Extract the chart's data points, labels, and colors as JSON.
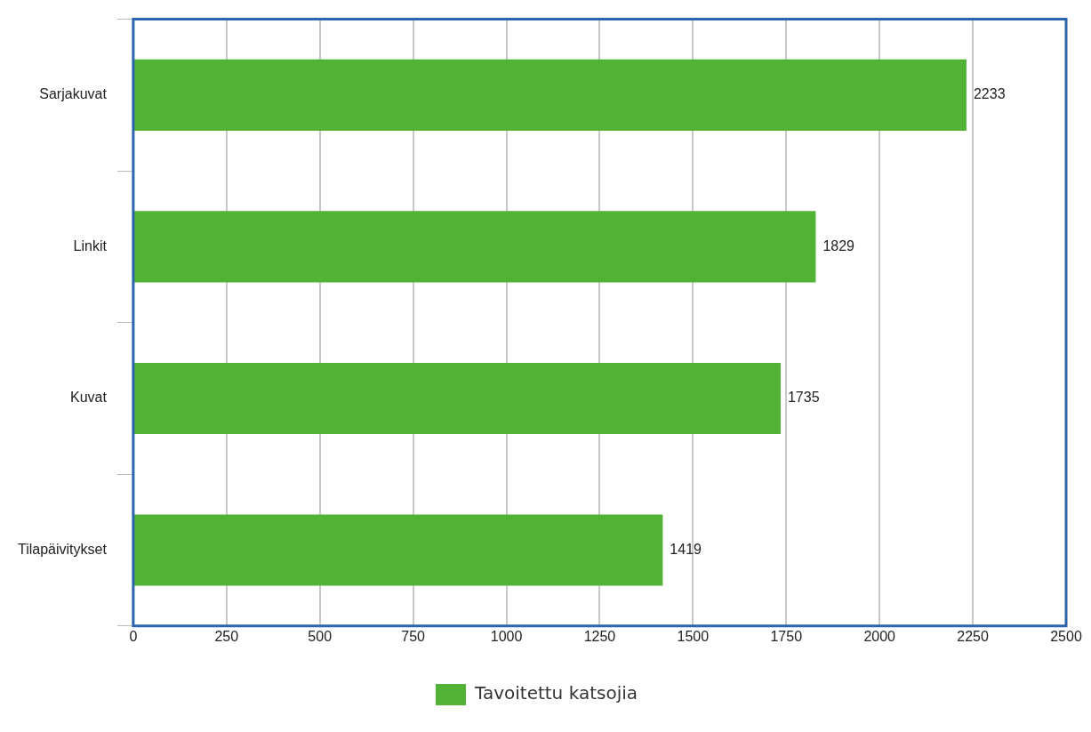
{
  "chart_data": {
    "type": "bar",
    "orientation": "horizontal",
    "categories": [
      "Sarjakuvat",
      "Linkit",
      "Kuvat",
      "Tilapäivitykset"
    ],
    "series": [
      {
        "name": "Tavoitettu katsojia",
        "color": "#52b236",
        "values": [
          2233,
          1829,
          1735,
          1419
        ]
      }
    ],
    "xlim": [
      0,
      2500
    ],
    "xticks": [
      0,
      250,
      500,
      750,
      1000,
      1250,
      1500,
      1750,
      2000,
      2250,
      2500
    ],
    "grid": "x",
    "legend": "bottom",
    "data_labels": true
  }
}
